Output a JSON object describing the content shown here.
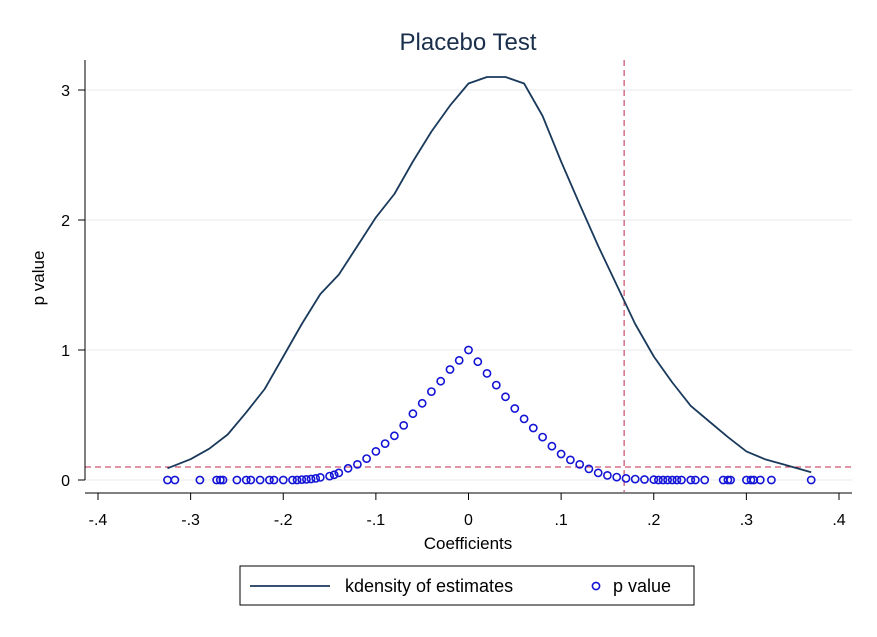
{
  "chart_data": {
    "type": "line+scatter",
    "title": "Placebo Test",
    "xlabel": "Coefficients",
    "ylabel": "p value",
    "xlim": [
      -0.4,
      0.4
    ],
    "ylim": [
      0,
      3
    ],
    "x_ticks": [
      -0.4,
      -0.3,
      -0.2,
      -0.1,
      0,
      0.1,
      0.2,
      0.3,
      0.4
    ],
    "x_tick_labels": [
      "-.4",
      "-.3",
      "-.2",
      "-.1",
      "0",
      ".1",
      ".2",
      ".3",
      ".4"
    ],
    "y_ticks": [
      0,
      1,
      2,
      3
    ],
    "y_tick_labels": [
      "0",
      "1",
      "2",
      "3"
    ],
    "grid": true,
    "reference_lines": {
      "vertical_x": 0.168,
      "horizontal_y": 0.1,
      "color": "#c0284a"
    },
    "legend": {
      "placement": "bottom",
      "entries": [
        "kdensity of estimates",
        "p value"
      ]
    },
    "colors": {
      "kdensity": "#1a3a5c",
      "pvalue": "#1414d6",
      "axis": "#000000"
    },
    "series": [
      {
        "name": "kdensity of estimates",
        "kind": "line",
        "x": [
          -0.325,
          -0.3,
          -0.28,
          -0.26,
          -0.24,
          -0.22,
          -0.2,
          -0.18,
          -0.16,
          -0.14,
          -0.12,
          -0.1,
          -0.08,
          -0.06,
          -0.04,
          -0.02,
          0.0,
          0.02,
          0.04,
          0.06,
          0.08,
          0.1,
          0.12,
          0.14,
          0.16,
          0.18,
          0.2,
          0.22,
          0.24,
          0.26,
          0.28,
          0.3,
          0.32,
          0.34,
          0.37
        ],
        "y": [
          0.09,
          0.16,
          0.24,
          0.35,
          0.52,
          0.7,
          0.95,
          1.2,
          1.43,
          1.58,
          1.8,
          2.02,
          2.2,
          2.45,
          2.68,
          2.88,
          3.05,
          3.1,
          3.1,
          3.05,
          2.8,
          2.45,
          2.12,
          1.8,
          1.5,
          1.2,
          0.95,
          0.75,
          0.57,
          0.45,
          0.33,
          0.22,
          0.16,
          0.12,
          0.06
        ]
      },
      {
        "name": "p value",
        "kind": "scatter",
        "marker": "hollow-circle",
        "x": [
          -0.325,
          -0.317,
          -0.29,
          -0.272,
          -0.268,
          -0.265,
          -0.25,
          -0.24,
          -0.235,
          -0.225,
          -0.215,
          -0.21,
          -0.2,
          -0.19,
          -0.185,
          -0.18,
          -0.175,
          -0.17,
          -0.165,
          -0.16,
          -0.15,
          -0.145,
          -0.14,
          -0.13,
          -0.12,
          -0.11,
          -0.1,
          -0.09,
          -0.08,
          -0.07,
          -0.06,
          -0.05,
          -0.04,
          -0.03,
          -0.02,
          -0.01,
          0,
          0.01,
          0.02,
          0.03,
          0.04,
          0.05,
          0.06,
          0.07,
          0.08,
          0.09,
          0.1,
          0.11,
          0.12,
          0.13,
          0.14,
          0.15,
          0.16,
          0.17,
          0.18,
          0.19,
          0.2,
          0.205,
          0.21,
          0.215,
          0.22,
          0.225,
          0.23,
          0.24,
          0.245,
          0.255,
          0.275,
          0.28,
          0.283,
          0.3,
          0.305,
          0.308,
          0.315,
          0.327,
          0.37
        ],
        "y": [
          0,
          0,
          0,
          0,
          0,
          0,
          0,
          0,
          0,
          0,
          0,
          0,
          0,
          0,
          0,
          0.003,
          0.005,
          0.008,
          0.012,
          0.02,
          0.03,
          0.04,
          0.055,
          0.09,
          0.12,
          0.165,
          0.22,
          0.28,
          0.34,
          0.42,
          0.51,
          0.59,
          0.68,
          0.76,
          0.85,
          0.92,
          1.0,
          0.91,
          0.82,
          0.73,
          0.64,
          0.55,
          0.47,
          0.4,
          0.33,
          0.26,
          0.2,
          0.155,
          0.12,
          0.085,
          0.055,
          0.035,
          0.022,
          0.012,
          0.007,
          0.004,
          0.002,
          0,
          0,
          0,
          0,
          0,
          0,
          0,
          0,
          0,
          0,
          0,
          0,
          0,
          0,
          0,
          0,
          0,
          0
        ]
      }
    ]
  }
}
